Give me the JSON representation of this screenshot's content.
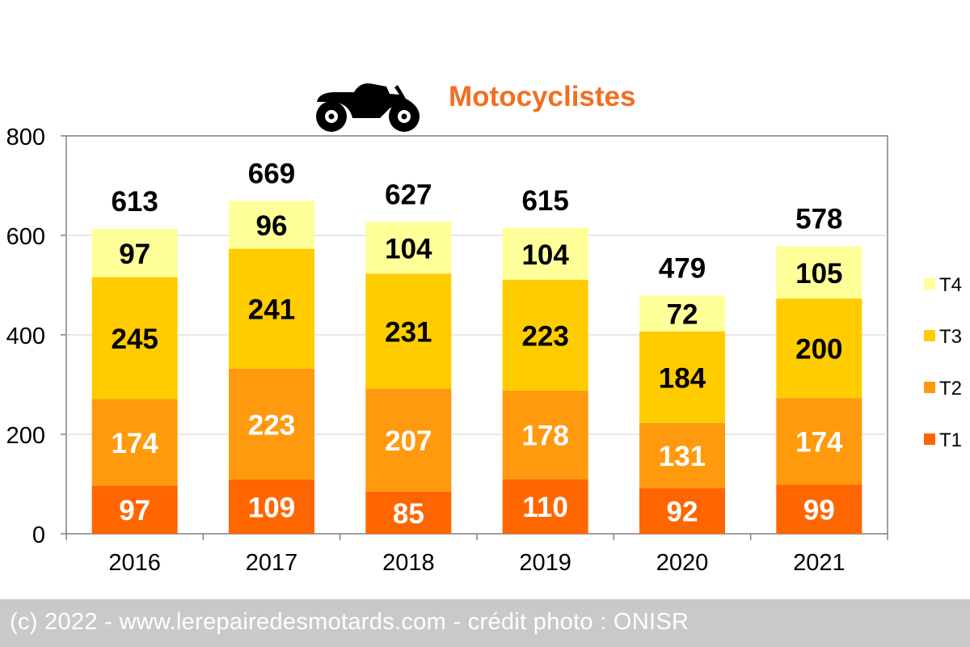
{
  "chart_data": {
    "type": "bar",
    "stacked": true,
    "title": "Motocyclistes",
    "categories": [
      "2016",
      "2017",
      "2018",
      "2019",
      "2020",
      "2021"
    ],
    "series": [
      {
        "name": "T1",
        "color": "#ff6600",
        "values": [
          97,
          109,
          85,
          110,
          92,
          99
        ]
      },
      {
        "name": "T2",
        "color": "#ff9a0e",
        "values": [
          174,
          223,
          207,
          178,
          131,
          174
        ]
      },
      {
        "name": "T3",
        "color": "#ffcc00",
        "values": [
          245,
          241,
          231,
          223,
          184,
          200
        ]
      },
      {
        "name": "T4",
        "color": "#ffff99",
        "values": [
          97,
          96,
          104,
          104,
          72,
          105
        ]
      }
    ],
    "totals": [
      613,
      669,
      627,
      615,
      479,
      578
    ],
    "ylim": [
      0,
      800
    ],
    "yticks": [
      0,
      200,
      400,
      600,
      800
    ],
    "grid": true,
    "legend": "right",
    "segment_label_colors": {
      "T1": "#ffffff",
      "T2": "#ffffff",
      "T3": "#000000",
      "T4": "#000000"
    }
  },
  "icon": "motorcycle-icon",
  "footer": {
    "text": "(c) 2022 - www.lerepairedesmotards.com - crédit photo : ONISR"
  }
}
